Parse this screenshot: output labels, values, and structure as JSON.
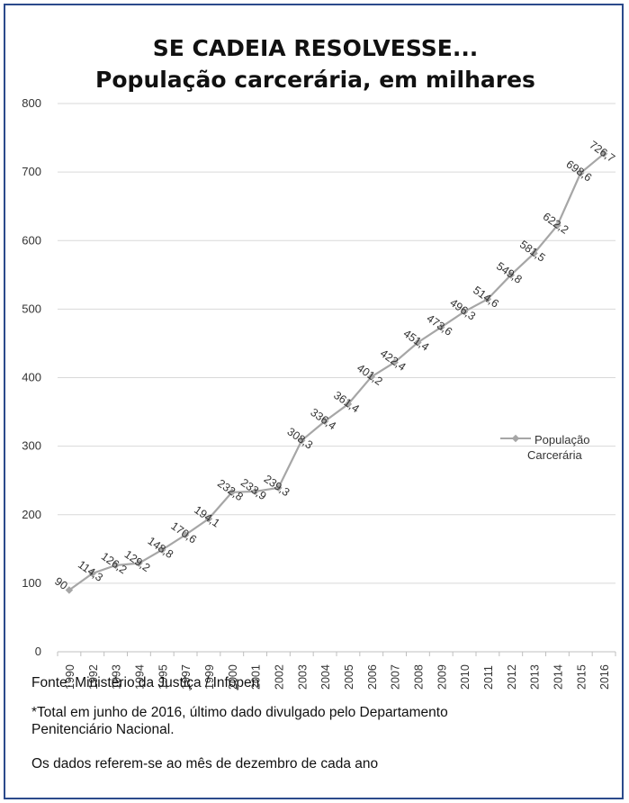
{
  "chart_data": {
    "type": "line",
    "title": "SE CADEIA RESOLVESSE...",
    "subtitle": "População carcerária, em milhares",
    "categories": [
      "1990",
      "1992",
      "1993",
      "1994",
      "1995",
      "1997",
      "1999",
      "2000",
      "2001",
      "2002",
      "2003",
      "2004",
      "2005",
      "2006",
      "2007",
      "2008",
      "2009",
      "2010",
      "2011",
      "2012",
      "2013",
      "2014",
      "2015",
      "2016"
    ],
    "series": [
      {
        "name": "População Carcerária",
        "values": [
          90,
          114.3,
          126.2,
          129.2,
          148.8,
          170.6,
          194.1,
          232.8,
          233.9,
          239.3,
          308.3,
          336.4,
          361.4,
          401.2,
          422.4,
          451.4,
          473.6,
          496.3,
          514.6,
          549.8,
          581.5,
          622.2,
          698.6,
          726.7
        ],
        "labels": [
          "90",
          "114,3",
          "126,2",
          "129,2",
          "148,8",
          "170,6",
          "194,1",
          "232,8",
          "233,9",
          "239,3",
          "308,3",
          "336,4",
          "361,4",
          "401,2",
          "422,4",
          "451,4",
          "473,6",
          "496,3",
          "514,6",
          "549,8",
          "581,5",
          "622,2",
          "698,6",
          "726,7"
        ],
        "color": "#a6a6a6"
      }
    ],
    "ylim": [
      0,
      800
    ],
    "yticks": [
      "0",
      "100",
      "200",
      "300",
      "400",
      "500",
      "600",
      "700",
      "800"
    ],
    "grid": true,
    "legend": {
      "position": "right",
      "line1": "População",
      "line2": "Carcerária"
    }
  },
  "notes": {
    "source": "Fonte: Ministério da Justiça / Infopen",
    "footnote_line1": "*Total em junho de 2016, último dado divulgado pelo Departamento",
    "footnote_line2": "Penitenciário Nacional.",
    "december_note": "Os dados referem-se ao mês de dezembro de cada ano"
  },
  "colors": {
    "border": "#2b4a8b",
    "grid": "#d9d9d9",
    "line": "#a6a6a6",
    "text": "#333333"
  }
}
